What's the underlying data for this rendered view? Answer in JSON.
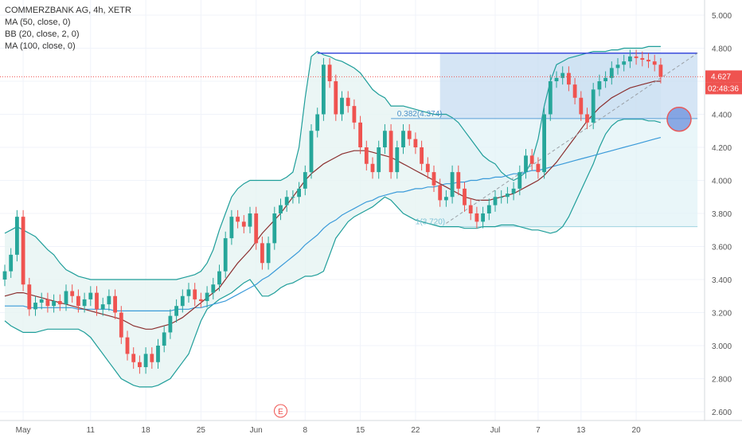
{
  "header": {
    "symbol_line": "COMMERZBANK AG, 4h, XETR",
    "indicators": [
      "MA (50, close, 0)",
      "BB (20, close, 2, 0)",
      "MA (100, close, 0)"
    ]
  },
  "price_badges": {
    "last_price": "4.627",
    "countdown": "02:48:36"
  },
  "event_marker": "E",
  "colors": {
    "up": "#26a69a",
    "down": "#ef5350",
    "bb": "#1f9e9a",
    "bb_fill": "#e6f4f3",
    "ma50": "#8b2f2f",
    "ma100": "#3a9ad9",
    "range_line": "#3b4bdc",
    "fib_fill": "#c7dcf2",
    "fib_fill_low": "#e0f2f6",
    "price_line": "#ef5350"
  },
  "chart_data": {
    "type": "candlestick",
    "title": "COMMERZBANK AG, 4h, XETR",
    "ylim": [
      2.55,
      5.05
    ],
    "y_ticks": [
      "5.000",
      "4.800",
      "4.600",
      "4.400",
      "4.200",
      "4.000",
      "3.800",
      "3.600",
      "3.400",
      "3.200",
      "3.000",
      "2.800",
      "2.600"
    ],
    "x_ticks": [
      "May",
      "11",
      "18",
      "25",
      "Jun",
      "8",
      "15",
      "22",
      "Jul",
      "7",
      "13",
      "20"
    ],
    "x_tick_index": [
      3,
      14,
      23,
      32,
      41,
      49,
      58,
      67,
      80,
      87,
      94,
      103
    ],
    "bar_count": 108,
    "close": [
      3.45,
      3.55,
      3.78,
      3.37,
      3.22,
      3.26,
      3.28,
      3.24,
      3.27,
      3.25,
      3.33,
      3.3,
      3.24,
      3.28,
      3.32,
      3.22,
      3.25,
      3.3,
      3.2,
      3.05,
      2.95,
      2.9,
      2.87,
      2.95,
      2.9,
      3.0,
      3.08,
      3.18,
      3.24,
      3.3,
      3.34,
      3.28,
      3.27,
      3.32,
      3.37,
      3.45,
      3.65,
      3.78,
      3.75,
      3.72,
      3.8,
      3.62,
      3.5,
      3.62,
      3.8,
      3.85,
      3.9,
      3.9,
      3.95,
      4.05,
      4.3,
      4.4,
      4.7,
      4.6,
      4.4,
      4.5,
      4.45,
      4.35,
      4.2,
      4.1,
      4.05,
      4.2,
      4.3,
      4.05,
      4.2,
      4.3,
      4.25,
      4.2,
      4.1,
      4.05,
      3.97,
      3.88,
      3.9,
      4.05,
      3.95,
      3.85,
      3.8,
      3.75,
      3.8,
      3.85,
      3.9,
      3.9,
      3.92,
      3.95,
      4.05,
      4.15,
      4.1,
      4.05,
      4.4,
      4.6,
      4.62,
      4.65,
      4.58,
      4.5,
      4.4,
      4.35,
      4.55,
      4.6,
      4.62,
      4.68,
      4.7,
      4.72,
      4.75,
      4.74,
      4.73,
      4.72,
      4.7,
      4.627
    ],
    "ma50": [
      3.3,
      3.31,
      3.32,
      3.32,
      3.31,
      3.3,
      3.29,
      3.28,
      3.27,
      3.26,
      3.25,
      3.24,
      3.23,
      3.22,
      3.21,
      3.2,
      3.19,
      3.18,
      3.17,
      3.16,
      3.14,
      3.12,
      3.11,
      3.1,
      3.1,
      3.11,
      3.12,
      3.13,
      3.15,
      3.17,
      3.2,
      3.23,
      3.26,
      3.29,
      3.32,
      3.35,
      3.4,
      3.45,
      3.5,
      3.54,
      3.58,
      3.63,
      3.68,
      3.72,
      3.76,
      3.8,
      3.85,
      3.9,
      3.95,
      4.0,
      4.04,
      4.07,
      4.1,
      4.12,
      4.14,
      4.16,
      4.17,
      4.18,
      4.18,
      4.18,
      4.17,
      4.16,
      4.15,
      4.14,
      4.12,
      4.1,
      4.08,
      4.06,
      4.04,
      4.02,
      4.0,
      3.98,
      3.96,
      3.94,
      3.92,
      3.9,
      3.89,
      3.88,
      3.88,
      3.88,
      3.89,
      3.9,
      3.91,
      3.92,
      3.94,
      3.96,
      3.98,
      4.0,
      4.03,
      4.07,
      4.11,
      4.16,
      4.21,
      4.26,
      4.31,
      4.36,
      4.4,
      4.44,
      4.47,
      4.5,
      4.52,
      4.54,
      4.56,
      4.57,
      4.58,
      4.59,
      4.6,
      4.6
    ],
    "ma100": [
      3.24,
      3.24,
      3.24,
      3.24,
      3.23,
      3.23,
      3.23,
      3.23,
      3.23,
      3.23,
      3.23,
      3.23,
      3.22,
      3.22,
      3.22,
      3.22,
      3.22,
      3.22,
      3.21,
      3.21,
      3.21,
      3.21,
      3.21,
      3.21,
      3.21,
      3.21,
      3.21,
      3.21,
      3.22,
      3.22,
      3.22,
      3.23,
      3.23,
      3.24,
      3.25,
      3.26,
      3.27,
      3.29,
      3.31,
      3.33,
      3.35,
      3.37,
      3.4,
      3.42,
      3.45,
      3.48,
      3.51,
      3.54,
      3.57,
      3.61,
      3.64,
      3.67,
      3.71,
      3.74,
      3.76,
      3.79,
      3.81,
      3.83,
      3.85,
      3.87,
      3.88,
      3.9,
      3.91,
      3.92,
      3.93,
      3.93,
      3.94,
      3.95,
      3.95,
      3.96,
      3.96,
      3.97,
      3.98,
      3.98,
      3.99,
      3.99,
      4.0,
      4.0,
      4.01,
      4.01,
      4.02,
      4.02,
      4.03,
      4.04,
      4.04,
      4.05,
      4.06,
      4.06,
      4.07,
      4.08,
      4.09,
      4.1,
      4.11,
      4.12,
      4.13,
      4.14,
      4.15,
      4.16,
      4.17,
      4.18,
      4.19,
      4.2,
      4.21,
      4.22,
      4.23,
      4.24,
      4.25,
      4.26
    ],
    "bb_upper": [
      3.68,
      3.7,
      3.72,
      3.7,
      3.68,
      3.66,
      3.62,
      3.58,
      3.55,
      3.5,
      3.46,
      3.44,
      3.42,
      3.41,
      3.4,
      3.4,
      3.4,
      3.4,
      3.4,
      3.4,
      3.4,
      3.4,
      3.4,
      3.4,
      3.4,
      3.4,
      3.4,
      3.4,
      3.4,
      3.41,
      3.42,
      3.43,
      3.45,
      3.5,
      3.58,
      3.7,
      3.8,
      3.9,
      3.95,
      3.98,
      4.0,
      4.0,
      4.0,
      4.0,
      4.0,
      4.0,
      4.02,
      4.05,
      4.2,
      4.5,
      4.75,
      4.78,
      4.76,
      4.75,
      4.73,
      4.72,
      4.7,
      4.68,
      4.65,
      4.6,
      4.55,
      4.52,
      4.5,
      4.45,
      4.45,
      4.45,
      4.44,
      4.43,
      4.42,
      4.41,
      4.4,
      4.4,
      4.4,
      4.38,
      4.35,
      4.3,
      4.25,
      4.2,
      4.15,
      4.12,
      4.1,
      4.05,
      4.02,
      4.0,
      4.02,
      4.05,
      4.12,
      4.25,
      4.45,
      4.6,
      4.7,
      4.72,
      4.74,
      4.75,
      4.76,
      4.77,
      4.78,
      4.78,
      4.78,
      4.79,
      4.79,
      4.8,
      4.8,
      4.8,
      4.8,
      4.81,
      4.81,
      4.81
    ],
    "bb_lower": [
      3.15,
      3.12,
      3.1,
      3.08,
      3.08,
      3.08,
      3.09,
      3.1,
      3.1,
      3.1,
      3.1,
      3.1,
      3.1,
      3.08,
      3.05,
      3.0,
      2.95,
      2.9,
      2.85,
      2.8,
      2.78,
      2.76,
      2.75,
      2.75,
      2.75,
      2.76,
      2.78,
      2.8,
      2.85,
      2.9,
      2.95,
      3.05,
      3.15,
      3.22,
      3.25,
      3.28,
      3.3,
      3.32,
      3.35,
      3.38,
      3.4,
      3.35,
      3.3,
      3.3,
      3.32,
      3.35,
      3.37,
      3.38,
      3.4,
      3.42,
      3.42,
      3.43,
      3.45,
      3.55,
      3.65,
      3.7,
      3.75,
      3.78,
      3.8,
      3.82,
      3.84,
      3.87,
      3.9,
      3.88,
      3.84,
      3.8,
      3.78,
      3.76,
      3.75,
      3.74,
      3.73,
      3.72,
      3.72,
      3.72,
      3.72,
      3.71,
      3.71,
      3.71,
      3.72,
      3.72,
      3.72,
      3.73,
      3.73,
      3.73,
      3.72,
      3.71,
      3.7,
      3.7,
      3.69,
      3.68,
      3.69,
      3.72,
      3.78,
      3.86,
      3.94,
      4.02,
      4.1,
      4.2,
      4.28,
      4.33,
      4.36,
      4.37,
      4.37,
      4.37,
      4.37,
      4.36,
      4.36,
      4.35
    ]
  },
  "annotations": {
    "fib_0382_label": "0.382(4.374)",
    "fib_1_label": "1(3.720)",
    "fib_0382_value": 4.374,
    "fib_1_value": 3.72,
    "range_top_value": 4.77
  }
}
